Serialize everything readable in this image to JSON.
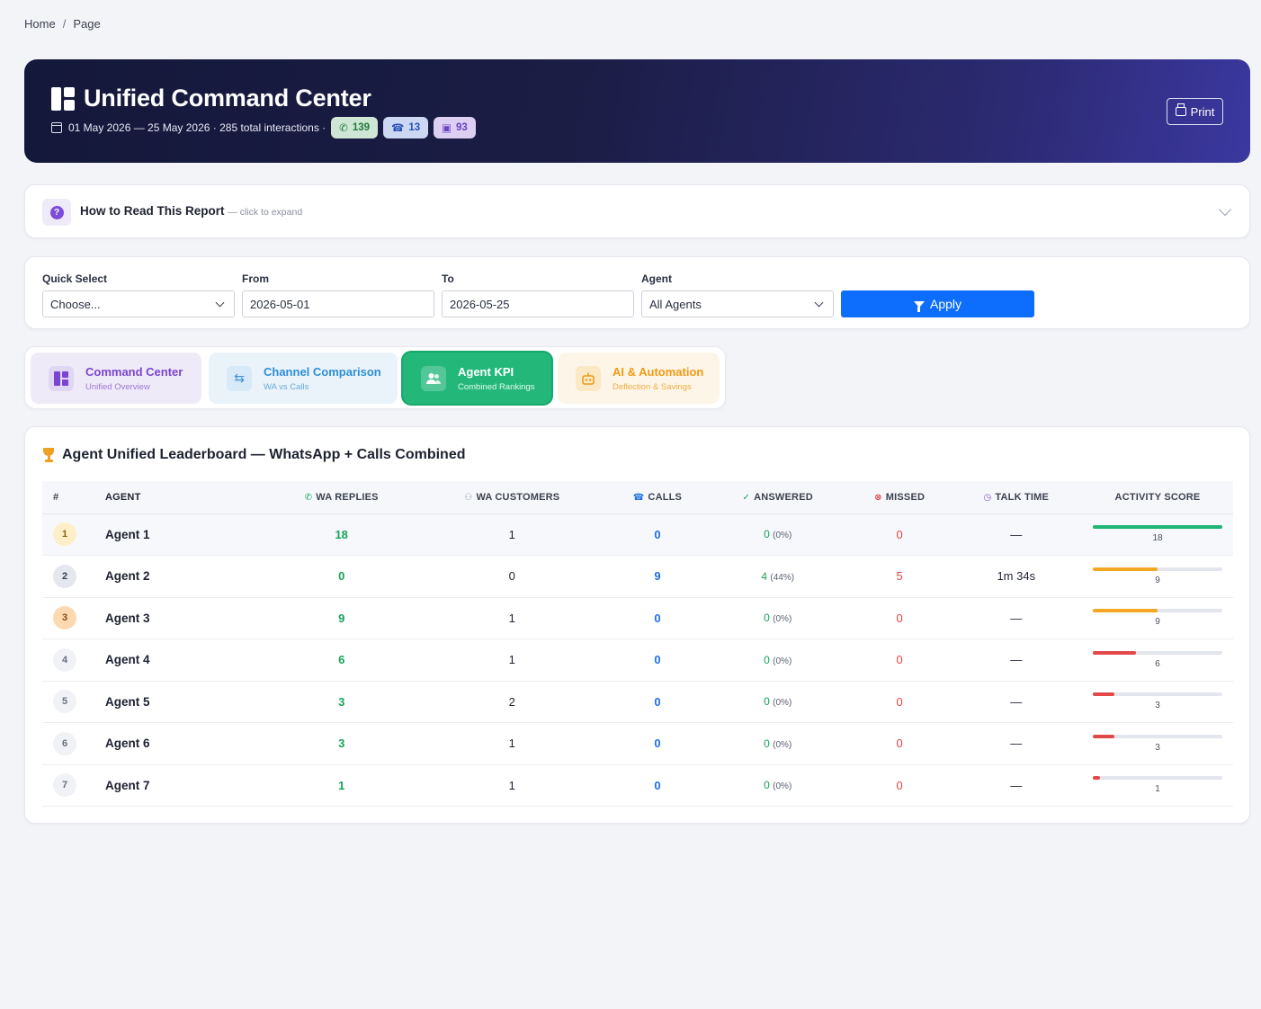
{
  "breadcrumb": {
    "home": "Home",
    "sep": "/",
    "page": "Page"
  },
  "hero": {
    "title": "Unified Command Center",
    "subtitle": "01 May 2026 — 25 May 2026 · 285 total interactions ·",
    "pills": {
      "whatsapp": "139",
      "calls": "13",
      "bot": "93"
    },
    "print_label": "Print"
  },
  "howto": {
    "title": "How to Read This Report",
    "hint": "— click to expand"
  },
  "filters": {
    "quick_select_label": "Quick Select",
    "quick_select_value": "Choose...",
    "from_label": "From",
    "from_value": "2026-05-01",
    "to_label": "To",
    "to_value": "2026-05-25",
    "agent_label": "Agent",
    "agent_value": "All Agents",
    "apply_label": "Apply"
  },
  "tabs": [
    {
      "title": "Command Center",
      "sub": "Unified Overview"
    },
    {
      "title": "Channel Comparison",
      "sub": "WA vs Calls"
    },
    {
      "title": "Agent KPI",
      "sub": "Combined Rankings"
    },
    {
      "title": "AI & Automation",
      "sub": "Deflection & Savings"
    }
  ],
  "leaderboard": {
    "title": "Agent Unified Leaderboard — WhatsApp + Calls Combined",
    "columns": [
      "#",
      "Agent",
      "WA Replies",
      "WA Customers",
      "Calls",
      "Answered",
      "Missed",
      "Talk Time",
      "Activity Score"
    ],
    "max_score": 18,
    "rows": [
      {
        "rank": "1",
        "agent": "Agent 1",
        "wa_replies": "18",
        "wa_customers": "1",
        "calls": "0",
        "answered": "0",
        "answered_pct": "(0%)",
        "missed": "0",
        "talk_time": "—",
        "score": 18,
        "score_label": "18",
        "bar_color": "#1fb574",
        "badge_bg": "#fdf0c8",
        "badge_fg": "#8a6410"
      },
      {
        "rank": "2",
        "agent": "Agent 2",
        "wa_replies": "0",
        "wa_customers": "0",
        "calls": "9",
        "answered": "4",
        "answered_pct": "(44%)",
        "missed": "5",
        "talk_time": "1m 34s",
        "score": 9,
        "score_label": "9",
        "bar_color": "#f5a623",
        "badge_bg": "#e4e7ee",
        "badge_fg": "#3a3f50"
      },
      {
        "rank": "3",
        "agent": "Agent 3",
        "wa_replies": "9",
        "wa_customers": "1",
        "calls": "0",
        "answered": "0",
        "answered_pct": "(0%)",
        "missed": "0",
        "talk_time": "—",
        "score": 9,
        "score_label": "9",
        "bar_color": "#f5a623",
        "badge_bg": "#fcd9b0",
        "badge_fg": "#8a4a10"
      },
      {
        "rank": "4",
        "agent": "Agent 4",
        "wa_replies": "6",
        "wa_customers": "1",
        "calls": "0",
        "answered": "0",
        "answered_pct": "(0%)",
        "missed": "0",
        "talk_time": "—",
        "score": 6,
        "score_label": "6",
        "bar_color": "#e34848",
        "badge_bg": "#f1f2f6",
        "badge_fg": "#6a7080"
      },
      {
        "rank": "5",
        "agent": "Agent 5",
        "wa_replies": "3",
        "wa_customers": "2",
        "calls": "0",
        "answered": "0",
        "answered_pct": "(0%)",
        "missed": "0",
        "talk_time": "—",
        "score": 3,
        "score_label": "3",
        "bar_color": "#e34848",
        "badge_bg": "#f1f2f6",
        "badge_fg": "#6a7080"
      },
      {
        "rank": "6",
        "agent": "Agent 6",
        "wa_replies": "3",
        "wa_customers": "1",
        "calls": "0",
        "answered": "0",
        "answered_pct": "(0%)",
        "missed": "0",
        "talk_time": "—",
        "score": 3,
        "score_label": "3",
        "bar_color": "#e34848",
        "badge_bg": "#f1f2f6",
        "badge_fg": "#6a7080"
      },
      {
        "rank": "7",
        "agent": "Agent 7",
        "wa_replies": "1",
        "wa_customers": "1",
        "calls": "0",
        "answered": "0",
        "answered_pct": "(0%)",
        "missed": "0",
        "talk_time": "—",
        "score": 1,
        "score_label": "1",
        "bar_color": "#e34848",
        "badge_bg": "#f1f2f6",
        "badge_fg": "#6a7080"
      }
    ]
  }
}
